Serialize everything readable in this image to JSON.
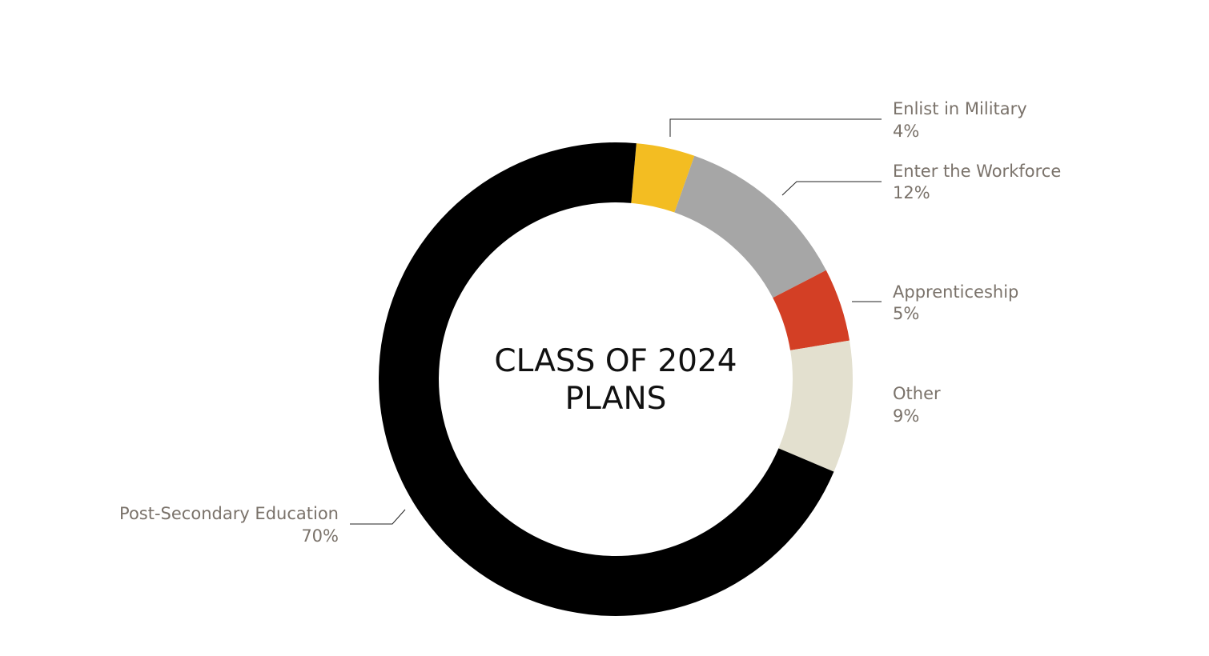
{
  "chart_data": {
    "type": "pie",
    "variant": "donut",
    "title_lines": [
      "CLASS OF 2024",
      "PLANS"
    ],
    "slices": [
      {
        "label": "Enlist in Military",
        "value": 4,
        "display": "4%",
        "color": "#f3bd22"
      },
      {
        "label": "Enter the Workforce",
        "value": 12,
        "display": "12%",
        "color": "#a6a6a6"
      },
      {
        "label": "Apprenticeship",
        "value": 5,
        "display": "5%",
        "color": "#d33f25"
      },
      {
        "label": "Other",
        "value": 9,
        "display": "9%",
        "color": "#e3e0cf"
      },
      {
        "label": "Post-Secondary Education",
        "value": 70,
        "display": "70%",
        "color": "#000000"
      }
    ],
    "legend": "none",
    "labels_position": "outside-with-leader-lines"
  }
}
